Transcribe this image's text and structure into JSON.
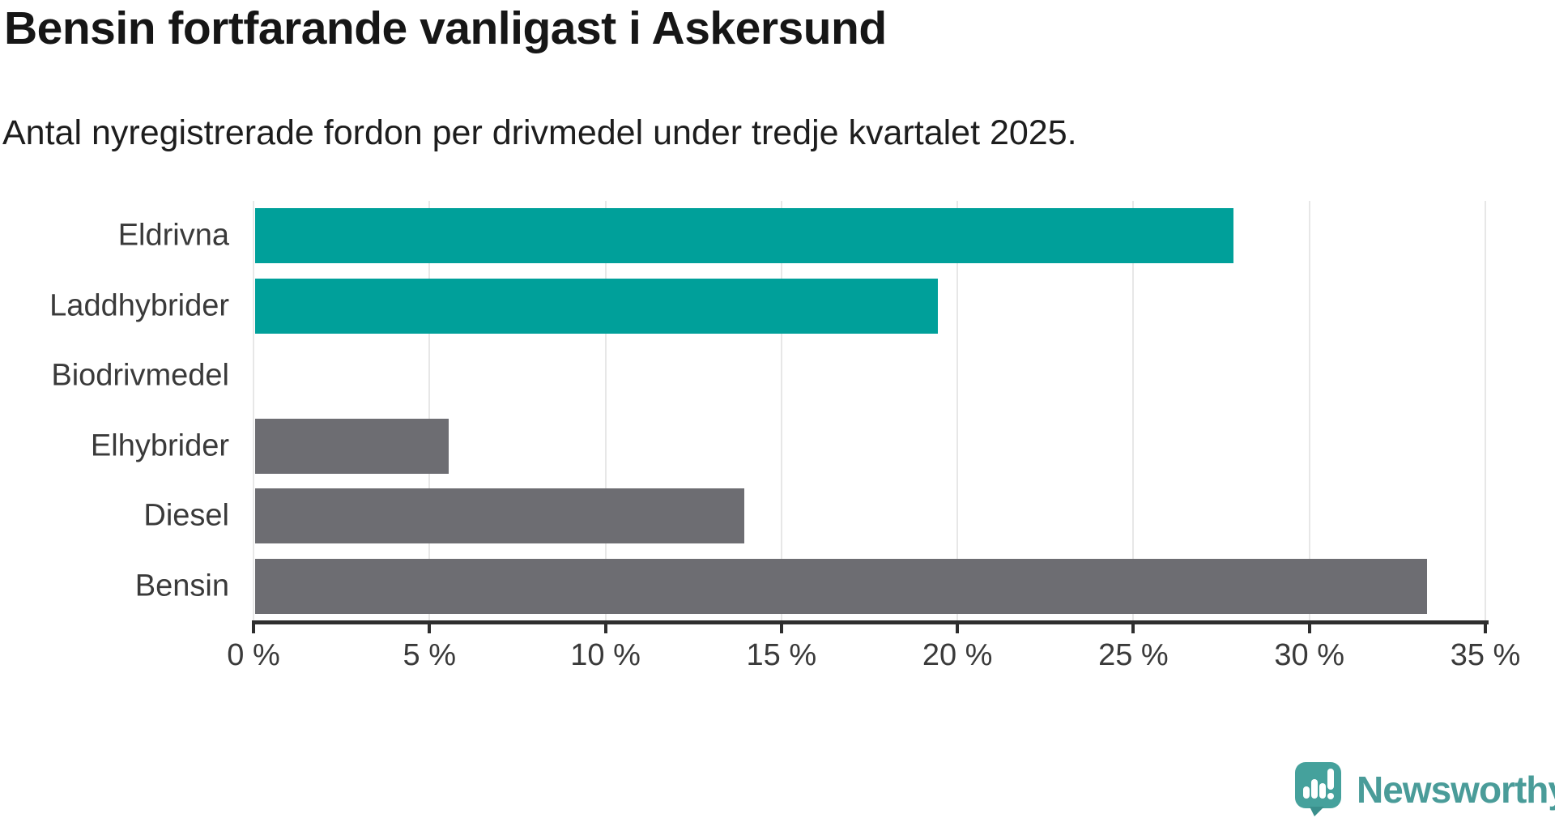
{
  "header": {
    "title": "Bensin fortfarande vanligast i Askersund",
    "subtitle": "Antal nyregistrerade fordon per drivmedel under tredje kvartalet 2025."
  },
  "chart_data": {
    "type": "bar",
    "orientation": "horizontal",
    "title": "Bensin fortfarande vanligast i Askersund",
    "subtitle": "Antal nyregistrerade fordon per drivmedel under tredje kvartalet 2025.",
    "categories": [
      "Eldrivna",
      "Laddhybrider",
      "Biodrivmedel",
      "Elhybrider",
      "Diesel",
      "Bensin"
    ],
    "values": [
      27.8,
      19.4,
      0,
      5.5,
      13.9,
      33.3
    ],
    "unit": "%",
    "xlim": [
      0,
      35
    ],
    "x_tick_step": 5,
    "x_tick_labels": [
      "0 %",
      "5 %",
      "10 %",
      "15 %",
      "20 %",
      "25 %",
      "30 %",
      "35 %"
    ],
    "grid": true,
    "legend_position": "none",
    "bar_colors": [
      "#00a09a",
      "#00a09a",
      "#6d6d72",
      "#6d6d72",
      "#6d6d72",
      "#6d6d72"
    ]
  },
  "colors": {
    "teal_bar": "#00a09a",
    "gray_bar": "#6d6d72",
    "axis": "#2e2e2e",
    "gridline": "#e7e7e7",
    "title_text": "#161616",
    "label_text": "#3a3a3a",
    "logo_teal": "#4a9c99"
  },
  "branding": {
    "logo_text": "Newsworthy",
    "logo_icon": "speech-bubble-bar-chart-icon"
  }
}
